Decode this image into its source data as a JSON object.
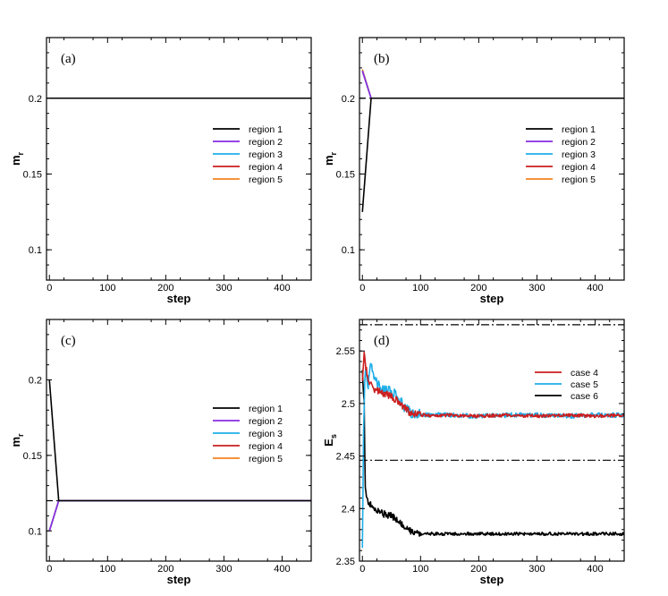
{
  "chart_data": [
    {
      "type": "line",
      "panel_label": "(a)",
      "xlabel": "step",
      "ylabel": "m",
      "ylabel_sub": "r",
      "xlim": [
        -5,
        450
      ],
      "ylim": [
        0.08,
        0.24
      ],
      "x_ticks": [
        0,
        100,
        200,
        300,
        400
      ],
      "y_ticks": [
        {
          "value": 0.1,
          "label": "0.1"
        },
        {
          "value": 0.15,
          "label": "0.15"
        },
        {
          "value": 0.2,
          "label": "0.2"
        }
      ],
      "legend": [
        "region 1",
        "region 2",
        "region 3",
        "region 4",
        "region 5"
      ],
      "reference_lines": [
        {
          "y": 0.2,
          "style": "dashed"
        }
      ],
      "series": [
        {
          "name": "region 1",
          "color": "#000000",
          "x": [
            0,
            450
          ],
          "y": [
            0.2,
            0.2
          ]
        },
        {
          "name": "region 2",
          "color": "#8a2be2",
          "x": [
            0,
            450
          ],
          "y": [
            0.2,
            0.2
          ]
        },
        {
          "name": "region 3",
          "color": "#1eaee8",
          "x": [
            0,
            450
          ],
          "y": [
            0.2,
            0.2
          ]
        },
        {
          "name": "region 4",
          "color": "#cc1f1f",
          "x": [
            0,
            450
          ],
          "y": [
            0.2,
            0.2
          ]
        },
        {
          "name": "region 5",
          "color": "#f5821f",
          "x": [
            0,
            450
          ],
          "y": [
            0.2,
            0.2
          ]
        }
      ]
    },
    {
      "type": "line",
      "panel_label": "(b)",
      "xlabel": "step",
      "ylabel": "m",
      "ylabel_sub": "r",
      "xlim": [
        -5,
        450
      ],
      "ylim": [
        0.08,
        0.24
      ],
      "x_ticks": [
        0,
        100,
        200,
        300,
        400
      ],
      "y_ticks": [
        {
          "value": 0.1,
          "label": "0.1"
        },
        {
          "value": 0.15,
          "label": "0.15"
        },
        {
          "value": 0.2,
          "label": "0.2"
        }
      ],
      "legend": [
        "region 1",
        "region 2",
        "region 3",
        "region 4",
        "region 5"
      ],
      "reference_lines": [
        {
          "y": 0.2,
          "style": "dashed"
        }
      ],
      "series": [
        {
          "name": "region 1",
          "color": "#000000",
          "x": [
            0,
            15,
            450
          ],
          "y": [
            0.125,
            0.2,
            0.2
          ]
        },
        {
          "name": "region 2",
          "color": "#8a2be2",
          "x": [
            0,
            15,
            450
          ],
          "y": [
            0.218,
            0.2,
            0.2
          ]
        },
        {
          "name": "region 3",
          "color": "#1eaee8",
          "x": [
            0,
            15,
            450
          ],
          "y": [
            0.218,
            0.2,
            0.2
          ]
        },
        {
          "name": "region 4",
          "color": "#cc1f1f",
          "x": [
            0,
            15,
            450
          ],
          "y": [
            0.218,
            0.2,
            0.2
          ]
        },
        {
          "name": "region 5",
          "color": "#f5821f",
          "x": [
            0,
            15,
            450
          ],
          "y": [
            0.219,
            0.2,
            0.2
          ]
        }
      ]
    },
    {
      "type": "line",
      "panel_label": "(c)",
      "xlabel": "step",
      "ylabel": "m",
      "ylabel_sub": "r",
      "xlim": [
        -5,
        450
      ],
      "ylim": [
        0.08,
        0.24
      ],
      "x_ticks": [
        0,
        100,
        200,
        300,
        400
      ],
      "y_ticks": [
        {
          "value": 0.1,
          "label": "0.1"
        },
        {
          "value": 0.15,
          "label": "0.15"
        },
        {
          "value": 0.2,
          "label": "0.2"
        }
      ],
      "legend": [
        "region 1",
        "region 2",
        "region 3",
        "region 4",
        "region 5"
      ],
      "reference_lines": [
        {
          "y": 0.12,
          "style": "dashed"
        }
      ],
      "series": [
        {
          "name": "region 1",
          "color": "#000000",
          "x": [
            0,
            16,
            450
          ],
          "y": [
            0.2,
            0.12,
            0.12
          ]
        },
        {
          "name": "region 2",
          "color": "#8a2be2",
          "x": [
            0,
            16,
            450
          ],
          "y": [
            0.1,
            0.12,
            0.12
          ]
        },
        {
          "name": "region 3",
          "color": "#1eaee8",
          "x": [
            0,
            16,
            450
          ],
          "y": [
            0.1,
            0.12,
            0.12
          ]
        },
        {
          "name": "region 4",
          "color": "#cc1f1f",
          "x": [
            0,
            16,
            450
          ],
          "y": [
            0.1,
            0.12,
            0.12
          ]
        },
        {
          "name": "region 5",
          "color": "#f5821f",
          "x": [
            0,
            16,
            450
          ],
          "y": [
            0.1,
            0.12,
            0.12
          ]
        }
      ]
    },
    {
      "type": "line",
      "panel_label": "(d)",
      "xlabel": "step",
      "ylabel": "E",
      "ylabel_sub": "s",
      "xlim": [
        -5,
        450
      ],
      "ylim": [
        2.35,
        2.58
      ],
      "x_ticks": [
        0,
        100,
        200,
        300,
        400
      ],
      "y_ticks": [
        {
          "value": 2.35,
          "label": "2.35"
        },
        {
          "value": 2.4,
          "label": "2.4"
        },
        {
          "value": 2.45,
          "label": "2.45"
        },
        {
          "value": 2.5,
          "label": "2.5"
        },
        {
          "value": 2.55,
          "label": "2.55"
        }
      ],
      "legend": [
        "case 4",
        "case 5",
        "case 6"
      ],
      "reference_lines": [
        {
          "y": 2.575,
          "style": "dashdot"
        },
        {
          "y": 2.446,
          "style": "dashdot"
        }
      ],
      "series": [
        {
          "name": "case 4",
          "color": "#cc1f1f",
          "x": [
            0,
            3,
            6,
            10,
            20,
            30,
            45,
            60,
            70,
            80,
            90,
            100,
            110,
            120,
            150,
            200,
            250,
            300,
            350,
            400,
            450
          ],
          "y": [
            2.52,
            2.547,
            2.535,
            2.522,
            2.514,
            2.511,
            2.508,
            2.503,
            2.497,
            2.492,
            2.49,
            2.489,
            2.489,
            2.488,
            2.489,
            2.488,
            2.489,
            2.488,
            2.489,
            2.488,
            2.489
          ],
          "noise": 0.0015
        },
        {
          "name": "case 5",
          "color": "#1eaee8",
          "x": [
            0,
            2,
            4,
            6,
            10,
            15,
            20,
            30,
            45,
            55,
            65,
            75,
            85,
            95,
            110,
            130,
            150,
            200,
            250,
            300,
            350,
            400,
            450
          ],
          "y": [
            2.36,
            2.47,
            2.52,
            2.53,
            2.515,
            2.54,
            2.525,
            2.515,
            2.512,
            2.51,
            2.502,
            2.495,
            2.491,
            2.49,
            2.489,
            2.489,
            2.489,
            2.488,
            2.489,
            2.489,
            2.488,
            2.489,
            2.489
          ],
          "noise": 0.0022
        },
        {
          "name": "case 6",
          "color": "#000000",
          "x": [
            0,
            3,
            5,
            7,
            10,
            15,
            25,
            35,
            50,
            65,
            80,
            90,
            100,
            150,
            200,
            250,
            300,
            350,
            400,
            450
          ],
          "y": [
            2.53,
            2.5,
            2.42,
            2.41,
            2.405,
            2.403,
            2.398,
            2.395,
            2.393,
            2.386,
            2.379,
            2.377,
            2.376,
            2.376,
            2.376,
            2.376,
            2.376,
            2.376,
            2.376,
            2.376
          ],
          "noise": 0.0015
        }
      ]
    }
  ]
}
